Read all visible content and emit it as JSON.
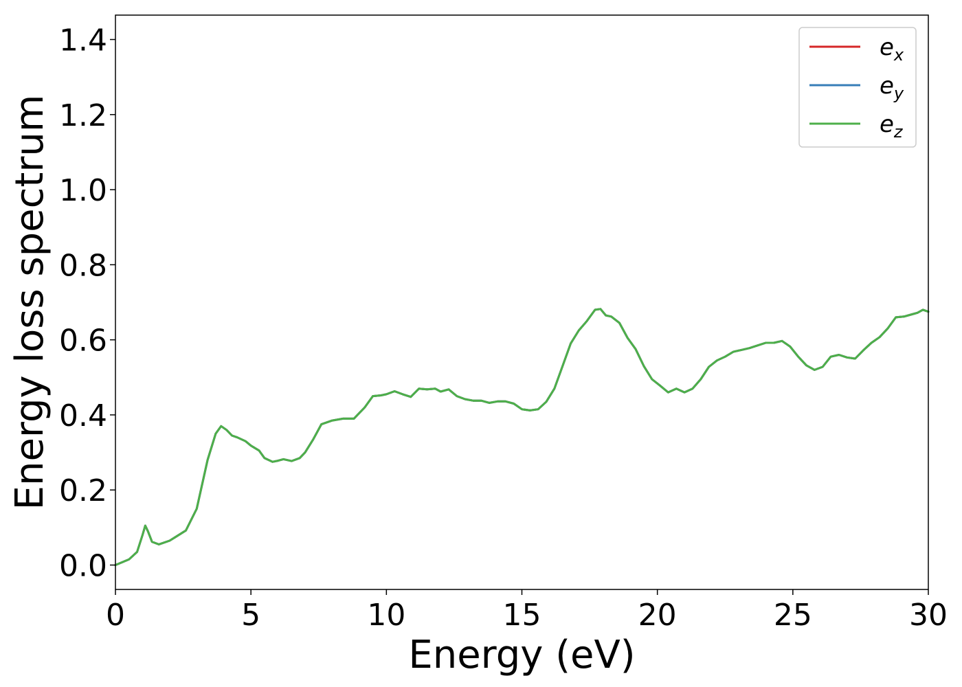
{
  "chart_data": {
    "type": "line",
    "xlabel": "Energy (eV)",
    "ylabel": "Energy loss spectrum",
    "xlim": [
      0,
      30
    ],
    "ylim": [
      -0.065,
      1.465
    ],
    "xticks": [
      0,
      5,
      10,
      15,
      20,
      25,
      30
    ],
    "xtick_labels": [
      "0",
      "5",
      "10",
      "15",
      "20",
      "25",
      "30"
    ],
    "yticks": [
      0.0,
      0.2,
      0.4,
      0.6,
      0.8,
      1.0,
      1.2,
      1.4
    ],
    "ytick_labels": [
      "0.0",
      "0.2",
      "0.4",
      "0.6",
      "0.8",
      "1.0",
      "1.2",
      "1.4"
    ],
    "grid": false,
    "legend_position": "top-right",
    "series": [
      {
        "name": "e_x",
        "label_base": "e",
        "label_sub": "x",
        "color": "#d62728",
        "x": [
          0,
          0.5,
          0.8,
          1.0,
          1.1,
          1.2,
          1.35,
          1.6,
          2.0,
          2.6,
          3.0,
          3.4,
          3.7,
          3.9,
          4.1,
          4.3,
          4.5,
          4.8,
          5.0,
          5.3,
          5.5,
          5.8,
          6.0,
          6.2,
          6.5,
          6.8,
          7.0,
          7.3,
          7.6,
          8.0,
          8.4,
          8.8,
          9.2,
          9.5,
          9.8,
          10.0,
          10.3,
          10.6,
          10.9,
          11.2,
          11.5,
          11.8,
          12.0,
          12.3,
          12.6,
          12.9,
          13.2,
          13.5,
          13.8,
          14.1,
          14.4,
          14.7,
          15.0,
          15.3,
          15.6,
          15.9,
          16.2,
          16.5,
          16.8,
          17.1,
          17.4,
          17.7,
          17.9,
          18.1,
          18.3,
          18.6,
          18.9,
          19.2,
          19.5,
          19.8,
          20.1,
          20.4,
          20.7,
          21.0,
          21.3,
          21.6,
          21.9,
          22.2,
          22.5,
          22.8,
          23.1,
          23.4,
          23.7,
          24.0,
          24.3,
          24.6,
          24.9,
          25.2,
          25.5,
          25.8,
          26.1,
          26.4,
          26.7,
          27.0,
          27.3,
          27.6,
          27.9,
          28.2,
          28.5,
          28.8,
          29.1,
          29.4,
          29.6,
          29.8,
          30.0
        ],
        "y": [
          0.0,
          0.015,
          0.035,
          0.08,
          0.105,
          0.09,
          0.062,
          0.055,
          0.065,
          0.092,
          0.15,
          0.28,
          0.35,
          0.37,
          0.36,
          0.345,
          0.34,
          0.33,
          0.318,
          0.305,
          0.285,
          0.275,
          0.278,
          0.282,
          0.277,
          0.285,
          0.3,
          0.335,
          0.375,
          0.385,
          0.39,
          0.39,
          0.42,
          0.45,
          0.452,
          0.455,
          0.463,
          0.455,
          0.448,
          0.47,
          0.468,
          0.47,
          0.462,
          0.468,
          0.45,
          0.442,
          0.438,
          0.438,
          0.432,
          0.436,
          0.436,
          0.43,
          0.415,
          0.412,
          0.415,
          0.435,
          0.47,
          0.53,
          0.59,
          0.625,
          0.65,
          0.68,
          0.682,
          0.665,
          0.662,
          0.645,
          0.605,
          0.575,
          0.53,
          0.495,
          0.478,
          0.46,
          0.47,
          0.46,
          0.47,
          0.495,
          0.528,
          0.545,
          0.555,
          0.568,
          0.573,
          0.578,
          0.585,
          0.592,
          0.592,
          0.597,
          0.582,
          0.555,
          0.532,
          0.52,
          0.528,
          0.555,
          0.56,
          0.553,
          0.55,
          0.572,
          0.592,
          0.607,
          0.63,
          0.66,
          0.662,
          0.668,
          0.672,
          0.68,
          0.675
        ]
      },
      {
        "name": "e_y",
        "label_base": "e",
        "label_sub": "y",
        "color": "#377eb8",
        "x": [
          0,
          0.5,
          0.8,
          1.0,
          1.1,
          1.2,
          1.35,
          1.6,
          2.0,
          2.6,
          3.0,
          3.4,
          3.7,
          3.9,
          4.1,
          4.3,
          4.5,
          4.8,
          5.0,
          5.3,
          5.5,
          5.8,
          6.0,
          6.2,
          6.5,
          6.8,
          7.0,
          7.3,
          7.6,
          8.0,
          8.4,
          8.8,
          9.2,
          9.5,
          9.8,
          10.0,
          10.3,
          10.6,
          10.9,
          11.2,
          11.5,
          11.8,
          12.0,
          12.3,
          12.6,
          12.9,
          13.2,
          13.5,
          13.8,
          14.1,
          14.4,
          14.7,
          15.0,
          15.3,
          15.6,
          15.9,
          16.2,
          16.5,
          16.8,
          17.1,
          17.4,
          17.7,
          17.9,
          18.1,
          18.3,
          18.6,
          18.9,
          19.2,
          19.5,
          19.8,
          20.1,
          20.4,
          20.7,
          21.0,
          21.3,
          21.6,
          21.9,
          22.2,
          22.5,
          22.8,
          23.1,
          23.4,
          23.7,
          24.0,
          24.3,
          24.6,
          24.9,
          25.2,
          25.5,
          25.8,
          26.1,
          26.4,
          26.7,
          27.0,
          27.3,
          27.6,
          27.9,
          28.2,
          28.5,
          28.8,
          29.1,
          29.4,
          29.6,
          29.8,
          30.0
        ],
        "y": [
          0.0,
          0.015,
          0.035,
          0.08,
          0.105,
          0.09,
          0.062,
          0.055,
          0.065,
          0.092,
          0.15,
          0.28,
          0.35,
          0.37,
          0.36,
          0.345,
          0.34,
          0.33,
          0.318,
          0.305,
          0.285,
          0.275,
          0.278,
          0.282,
          0.277,
          0.285,
          0.3,
          0.335,
          0.375,
          0.385,
          0.39,
          0.39,
          0.42,
          0.45,
          0.452,
          0.455,
          0.463,
          0.455,
          0.448,
          0.47,
          0.468,
          0.47,
          0.462,
          0.468,
          0.45,
          0.442,
          0.438,
          0.438,
          0.432,
          0.436,
          0.436,
          0.43,
          0.415,
          0.412,
          0.415,
          0.435,
          0.47,
          0.53,
          0.59,
          0.625,
          0.65,
          0.68,
          0.682,
          0.665,
          0.662,
          0.645,
          0.605,
          0.575,
          0.53,
          0.495,
          0.478,
          0.46,
          0.47,
          0.46,
          0.47,
          0.495,
          0.528,
          0.545,
          0.555,
          0.568,
          0.573,
          0.578,
          0.585,
          0.592,
          0.592,
          0.597,
          0.582,
          0.555,
          0.532,
          0.52,
          0.528,
          0.555,
          0.56,
          0.553,
          0.55,
          0.572,
          0.592,
          0.607,
          0.63,
          0.66,
          0.662,
          0.668,
          0.672,
          0.68,
          0.675
        ]
      },
      {
        "name": "e_z",
        "label_base": "e",
        "label_sub": "z",
        "color": "#4daf4a",
        "x": [
          0,
          0.5,
          0.8,
          1.0,
          1.1,
          1.2,
          1.35,
          1.6,
          2.0,
          2.6,
          3.0,
          3.4,
          3.7,
          3.9,
          4.1,
          4.3,
          4.5,
          4.8,
          5.0,
          5.3,
          5.5,
          5.8,
          6.0,
          6.2,
          6.5,
          6.8,
          7.0,
          7.3,
          7.6,
          8.0,
          8.4,
          8.8,
          9.2,
          9.5,
          9.8,
          10.0,
          10.3,
          10.6,
          10.9,
          11.2,
          11.5,
          11.8,
          12.0,
          12.3,
          12.6,
          12.9,
          13.2,
          13.5,
          13.8,
          14.1,
          14.4,
          14.7,
          15.0,
          15.3,
          15.6,
          15.9,
          16.2,
          16.5,
          16.8,
          17.1,
          17.4,
          17.7,
          17.9,
          18.1,
          18.3,
          18.6,
          18.9,
          19.2,
          19.5,
          19.8,
          20.1,
          20.4,
          20.7,
          21.0,
          21.3,
          21.6,
          21.9,
          22.2,
          22.5,
          22.8,
          23.1,
          23.4,
          23.7,
          24.0,
          24.3,
          24.6,
          24.9,
          25.2,
          25.5,
          25.8,
          26.1,
          26.4,
          26.7,
          27.0,
          27.3,
          27.6,
          27.9,
          28.2,
          28.5,
          28.8,
          29.1,
          29.4,
          29.6,
          29.8,
          30.0
        ],
        "y": [
          0.0,
          0.015,
          0.035,
          0.08,
          0.105,
          0.09,
          0.062,
          0.055,
          0.065,
          0.092,
          0.15,
          0.28,
          0.35,
          0.37,
          0.36,
          0.345,
          0.34,
          0.33,
          0.318,
          0.305,
          0.285,
          0.275,
          0.278,
          0.282,
          0.277,
          0.285,
          0.3,
          0.335,
          0.375,
          0.385,
          0.39,
          0.39,
          0.42,
          0.45,
          0.452,
          0.455,
          0.463,
          0.455,
          0.448,
          0.47,
          0.468,
          0.47,
          0.462,
          0.468,
          0.45,
          0.442,
          0.438,
          0.438,
          0.432,
          0.436,
          0.436,
          0.43,
          0.415,
          0.412,
          0.415,
          0.435,
          0.47,
          0.53,
          0.59,
          0.625,
          0.65,
          0.68,
          0.682,
          0.665,
          0.662,
          0.645,
          0.605,
          0.575,
          0.53,
          0.495,
          0.478,
          0.46,
          0.47,
          0.46,
          0.47,
          0.495,
          0.528,
          0.545,
          0.555,
          0.568,
          0.573,
          0.578,
          0.585,
          0.592,
          0.592,
          0.597,
          0.582,
          0.555,
          0.532,
          0.52,
          0.528,
          0.555,
          0.56,
          0.553,
          0.55,
          0.572,
          0.592,
          0.607,
          0.63,
          0.66,
          0.662,
          0.668,
          0.672,
          0.68,
          0.675
        ]
      }
    ]
  }
}
